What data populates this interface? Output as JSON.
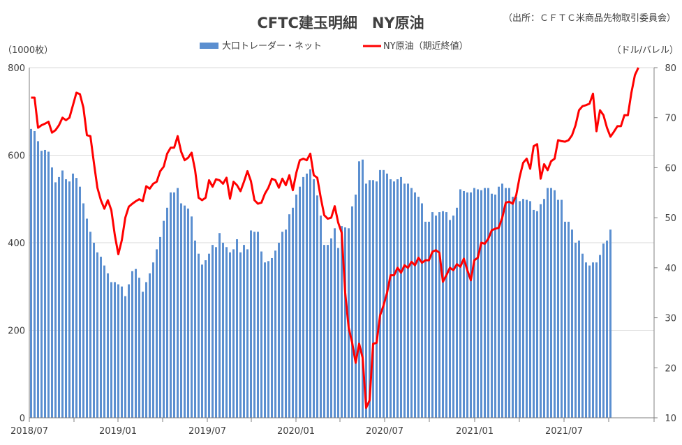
{
  "chart_data": {
    "type": "bar+line",
    "title": "CFTC建玉明細　NY原油",
    "source_note": "（出所：ＣＦＴＣ米商品先物取引委員会）",
    "left_unit": "（1000枚）",
    "right_unit": "（ドル/バレル）",
    "left_ylim": [
      0,
      800
    ],
    "right_ylim": [
      10,
      80
    ],
    "left_ticks": [
      "0",
      "200",
      "400",
      "600",
      "800"
    ],
    "right_ticks": [
      "10",
      "20",
      "30",
      "40",
      "50",
      "60",
      "70",
      "80"
    ],
    "x_ticks": [
      "2018/07",
      "2019/01",
      "2019/07",
      "2020/01",
      "2020/07",
      "2021/01",
      "2021/07"
    ],
    "colors": {
      "bars": "#5b8fd0",
      "line": "#ff0000",
      "grid": "#d9d9d9",
      "axis": "#7f7f7f"
    },
    "series": [
      {
        "name": "大口トレーダー・ネット",
        "type": "bar",
        "axis": "left",
        "values": [
          660,
          655,
          632,
          610,
          612,
          608,
          572,
          538,
          550,
          565,
          545,
          540,
          558,
          548,
          528,
          490,
          455,
          425,
          400,
          378,
          368,
          348,
          330,
          310,
          310,
          305,
          300,
          278,
          305,
          335,
          340,
          320,
          288,
          310,
          330,
          355,
          385,
          413,
          450,
          480,
          515,
          515,
          525,
          490,
          485,
          478,
          460,
          405,
          375,
          350,
          360,
          375,
          395,
          390,
          422,
          400,
          390,
          378,
          385,
          408,
          378,
          395,
          385,
          428,
          425,
          425,
          380,
          355,
          358,
          365,
          382,
          400,
          425,
          430,
          465,
          480,
          510,
          528,
          550,
          558,
          568,
          545,
          508,
          462,
          395,
          395,
          410,
          433,
          388,
          438,
          435,
          433,
          483,
          510,
          586,
          590,
          535,
          543,
          543,
          540,
          566,
          566,
          558,
          545,
          540,
          545,
          550,
          535,
          535,
          525,
          515,
          505,
          490,
          448,
          448,
          470,
          462,
          470,
          472,
          470,
          452,
          462,
          480,
          522,
          518,
          515,
          515,
          525,
          522,
          520,
          525,
          525,
          512,
          510,
          528,
          535,
          525,
          525,
          505,
          505,
          495,
          500,
          498,
          495,
          475,
          472,
          488,
          500,
          525,
          525,
          520,
          498,
          498,
          448,
          448,
          430,
          400,
          405,
          375,
          355,
          348,
          355,
          355,
          372,
          398,
          405,
          430
        ]
      },
      {
        "name": "NY原油（期近終値）",
        "type": "line",
        "axis": "right",
        "values": [
          74,
          74,
          68,
          68.5,
          68.8,
          69.2,
          67,
          67.5,
          68.5,
          70,
          69.5,
          70,
          72.5,
          75,
          74.7,
          72,
          66.5,
          66.3,
          61,
          56,
          53.5,
          51.8,
          53.5,
          51.5,
          46.5,
          42.7,
          45.5,
          50,
          52.2,
          52.8,
          53.3,
          53.7,
          53.3,
          56.3,
          55.8,
          56.8,
          57.2,
          59.3,
          60.2,
          62.8,
          64,
          64,
          66.3,
          63.2,
          61.5,
          62,
          63,
          59.5,
          54,
          53.5,
          54,
          57.5,
          56.2,
          57.7,
          57.5,
          56.8,
          58,
          53.8,
          57.2,
          56.5,
          55.3,
          57.2,
          59.3,
          57.3,
          53.5,
          52.8,
          53,
          54.8,
          56,
          57.8,
          57.5,
          56,
          57.8,
          56.5,
          58.5,
          55.5,
          59,
          61.5,
          61.8,
          61.5,
          62.8,
          58.5,
          58,
          54,
          50.5,
          49.8,
          50,
          52.3,
          49,
          47,
          35,
          28,
          25,
          21,
          24.8,
          22,
          12,
          13.5,
          24.8,
          25,
          30.5,
          32.5,
          35,
          38.5,
          38.5,
          40,
          39,
          40.5,
          40,
          41.2,
          40.5,
          42,
          41,
          41.5,
          41.5,
          43.2,
          43.5,
          43,
          37.2,
          38.5,
          40,
          39.5,
          40.7,
          40.2,
          41.8,
          39.5,
          37.5,
          41.5,
          42,
          45,
          44.8,
          45.8,
          47.5,
          47.8,
          48,
          50,
          53,
          53.2,
          52.8,
          54.5,
          58.2,
          61,
          61.8,
          59.8,
          64.3,
          64.7,
          57.8,
          60.7,
          59.5,
          61.3,
          61.8,
          65.5,
          65.3,
          65.2,
          65.5,
          66.5,
          68.5,
          71.5,
          72.3,
          72.5,
          72.8,
          74.8,
          67.3,
          71.5,
          70.5,
          68,
          66.2,
          67.2,
          68.3,
          68.3,
          70.5,
          70.5,
          75,
          78.5,
          80
        ]
      }
    ]
  }
}
